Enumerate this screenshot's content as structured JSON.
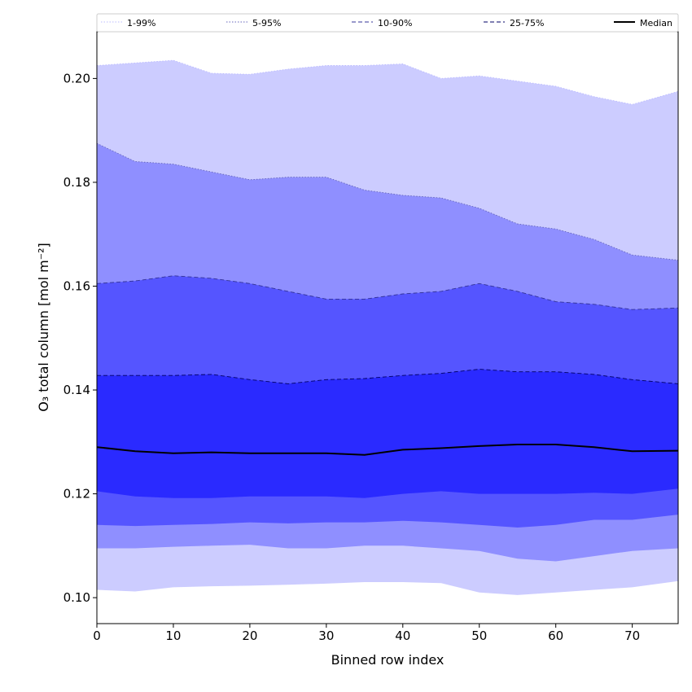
{
  "chart_data": {
    "type": "area",
    "title": "",
    "xlabel": "Binned row index",
    "ylabel": "O₃ total column [mol m⁻²]",
    "xlim": [
      0,
      76
    ],
    "ylim": [
      0.095,
      0.209
    ],
    "x_ticks": [
      0,
      10,
      20,
      30,
      40,
      50,
      60,
      70
    ],
    "y_ticks": [
      0.1,
      0.12,
      0.14,
      0.16,
      0.18,
      0.2
    ],
    "x_tick_labels": [
      "0",
      "10",
      "20",
      "30",
      "40",
      "50",
      "60",
      "70"
    ],
    "y_tick_labels": [
      "0.10",
      "0.12",
      "0.14",
      "0.16",
      "0.18",
      "0.20"
    ],
    "legend_position": "top",
    "x_points": [
      0,
      5,
      10,
      15,
      20,
      25,
      30,
      35,
      40,
      45,
      50,
      55,
      60,
      65,
      70,
      76
    ],
    "bands": [
      {
        "name": "1-99%",
        "color": "#ccccff",
        "edge_color": "#bbbbff",
        "line_style": "dotted",
        "lower": [
          0.1015,
          0.1012,
          0.102,
          0.1022,
          0.1023,
          0.1025,
          0.1027,
          0.103,
          0.103,
          0.1028,
          0.101,
          0.1005,
          0.101,
          0.1015,
          0.102,
          0.1032
        ],
        "upper": [
          0.2025,
          0.203,
          0.2035,
          0.201,
          0.2008,
          0.2018,
          0.2025,
          0.2025,
          0.2028,
          0.2,
          0.2005,
          0.1995,
          0.1985,
          0.1965,
          0.195,
          0.1975
        ]
      },
      {
        "name": "5-95%",
        "color": "#8f8fff",
        "edge_color": "#6666bb",
        "line_style": "dotted",
        "lower": [
          0.1095,
          0.1095,
          0.1098,
          0.11,
          0.1102,
          0.1095,
          0.1095,
          0.11,
          0.11,
          0.1095,
          0.109,
          0.1075,
          0.107,
          0.108,
          0.109,
          0.1095
        ],
        "upper": [
          0.1875,
          0.184,
          0.1835,
          0.182,
          0.1805,
          0.181,
          0.181,
          0.1785,
          0.1775,
          0.177,
          0.175,
          0.172,
          0.171,
          0.169,
          0.166,
          0.165
        ]
      },
      {
        "name": "10-90%",
        "color": "#5555ff",
        "edge_color": "#333399",
        "line_style": "dashed",
        "lower": [
          0.114,
          0.1138,
          0.114,
          0.1142,
          0.1145,
          0.1143,
          0.1145,
          0.1145,
          0.1148,
          0.1145,
          0.114,
          0.1135,
          0.114,
          0.115,
          0.115,
          0.116
        ],
        "upper": [
          0.1605,
          0.161,
          0.162,
          0.1615,
          0.1605,
          0.159,
          0.1575,
          0.1575,
          0.1585,
          0.159,
          0.1605,
          0.159,
          0.157,
          0.1565,
          0.1555,
          0.1558
        ]
      },
      {
        "name": "25-75%",
        "color": "#2a2aff",
        "edge_color": "#000066",
        "line_style": "dashed",
        "lower": [
          0.1205,
          0.1195,
          0.1192,
          0.1192,
          0.1195,
          0.1195,
          0.1195,
          0.1192,
          0.12,
          0.1205,
          0.12,
          0.12,
          0.12,
          0.1202,
          0.12,
          0.121
        ],
        "upper": [
          0.1428,
          0.1428,
          0.1428,
          0.143,
          0.142,
          0.1412,
          0.142,
          0.1422,
          0.1428,
          0.1432,
          0.144,
          0.1435,
          0.1435,
          0.143,
          0.142,
          0.1412
        ]
      }
    ],
    "median": {
      "name": "Median",
      "color": "#000000",
      "values": [
        0.129,
        0.1282,
        0.1278,
        0.128,
        0.1278,
        0.1278,
        0.1278,
        0.1275,
        0.1285,
        0.1288,
        0.1292,
        0.1295,
        0.1295,
        0.129,
        0.1282,
        0.1283
      ]
    },
    "legend": [
      "1-99%",
      "5-95%",
      "10-90%",
      "25-75%",
      "Median"
    ]
  }
}
